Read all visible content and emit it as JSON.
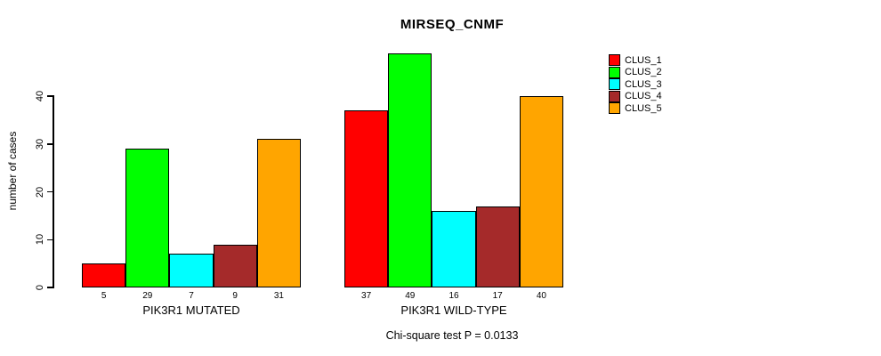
{
  "chart_data": {
    "type": "bar",
    "title": "MIRSEQ_CNMF",
    "xlabel": "",
    "ylabel": "number of cases",
    "ylim": [
      0,
      40
    ],
    "yticks": [
      0,
      10,
      20,
      30,
      40
    ],
    "grid": false,
    "legend_position": "top-right",
    "series": [
      {
        "name": "CLUS_1",
        "color": "#FF0000"
      },
      {
        "name": "CLUS_2",
        "color": "#00FF00"
      },
      {
        "name": "CLUS_3",
        "color": "#00FFFF"
      },
      {
        "name": "CLUS_4",
        "color": "#A52A2A"
      },
      {
        "name": "CLUS_5",
        "color": "#FFA500"
      }
    ],
    "groups": [
      {
        "label": "PIK3R1 MUTATED",
        "values": [
          5,
          29,
          7,
          9,
          31
        ]
      },
      {
        "label": "PIK3R1 WILD-TYPE",
        "values": [
          37,
          49,
          16,
          17,
          40
        ]
      }
    ],
    "annotation": "Chi-square test P = 0.0133"
  }
}
